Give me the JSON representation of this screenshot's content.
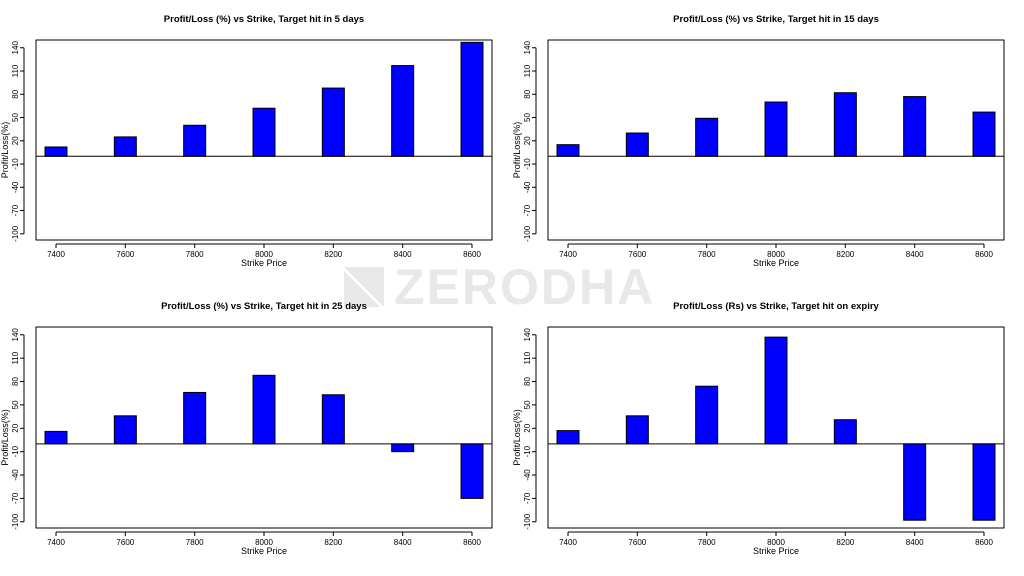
{
  "watermark": {
    "text": "ZERODHA",
    "color": "#e8e8e8"
  },
  "bar_color": "#0000ff",
  "chart_data": [
    {
      "type": "bar",
      "title": "Profit/Loss (%) vs Strike, Target hit in 5 days",
      "xlabel": "Strike Price",
      "ylabel": "Profit/Loss(%)",
      "categories": [
        "7400",
        "7600",
        "7800",
        "8000",
        "8200",
        "8400",
        "8600"
      ],
      "values": [
        12,
        25,
        40,
        62,
        88,
        117,
        147
      ],
      "yticks": [
        -100,
        -70,
        -40,
        -10,
        20,
        50,
        80,
        110,
        140
      ],
      "ylim": [
        -108,
        150
      ],
      "grid": false
    },
    {
      "type": "bar",
      "title": "Profit/Loss (%) vs Strike, Target hit in 15 days",
      "xlabel": "Strike Price",
      "ylabel": "Profit/Loss(%)",
      "categories": [
        "7400",
        "7600",
        "7800",
        "8000",
        "8200",
        "8400",
        "8600"
      ],
      "values": [
        15,
        30,
        49,
        70,
        82,
        77,
        57
      ],
      "yticks": [
        -100,
        -70,
        -40,
        -10,
        20,
        50,
        80,
        110,
        140
      ],
      "ylim": [
        -108,
        150
      ],
      "grid": false
    },
    {
      "type": "bar",
      "title": "Profit/Loss (%) vs Strike, Target hit in 25 days",
      "xlabel": "Strike Price",
      "ylabel": "Profit/Loss(%)",
      "categories": [
        "7400",
        "7600",
        "7800",
        "8000",
        "8200",
        "8400",
        "8600"
      ],
      "values": [
        16,
        36,
        66,
        88,
        63,
        -10,
        -70
      ],
      "yticks": [
        -100,
        -70,
        -40,
        -10,
        20,
        50,
        80,
        110,
        140
      ],
      "ylim": [
        -108,
        150
      ],
      "grid": false
    },
    {
      "type": "bar",
      "title": "Profit/Loss (Rs) vs Strike, Target hit on expiry",
      "xlabel": "Strike Price",
      "ylabel": "Profit/Loss(%)",
      "categories": [
        "7400",
        "7600",
        "7800",
        "8000",
        "8200",
        "8400",
        "8600"
      ],
      "values": [
        17,
        36,
        74,
        137,
        31,
        -98,
        -98
      ],
      "yticks": [
        -100,
        -70,
        -40,
        -10,
        20,
        50,
        80,
        110,
        140
      ],
      "ylim": [
        -108,
        150
      ],
      "grid": false
    }
  ]
}
